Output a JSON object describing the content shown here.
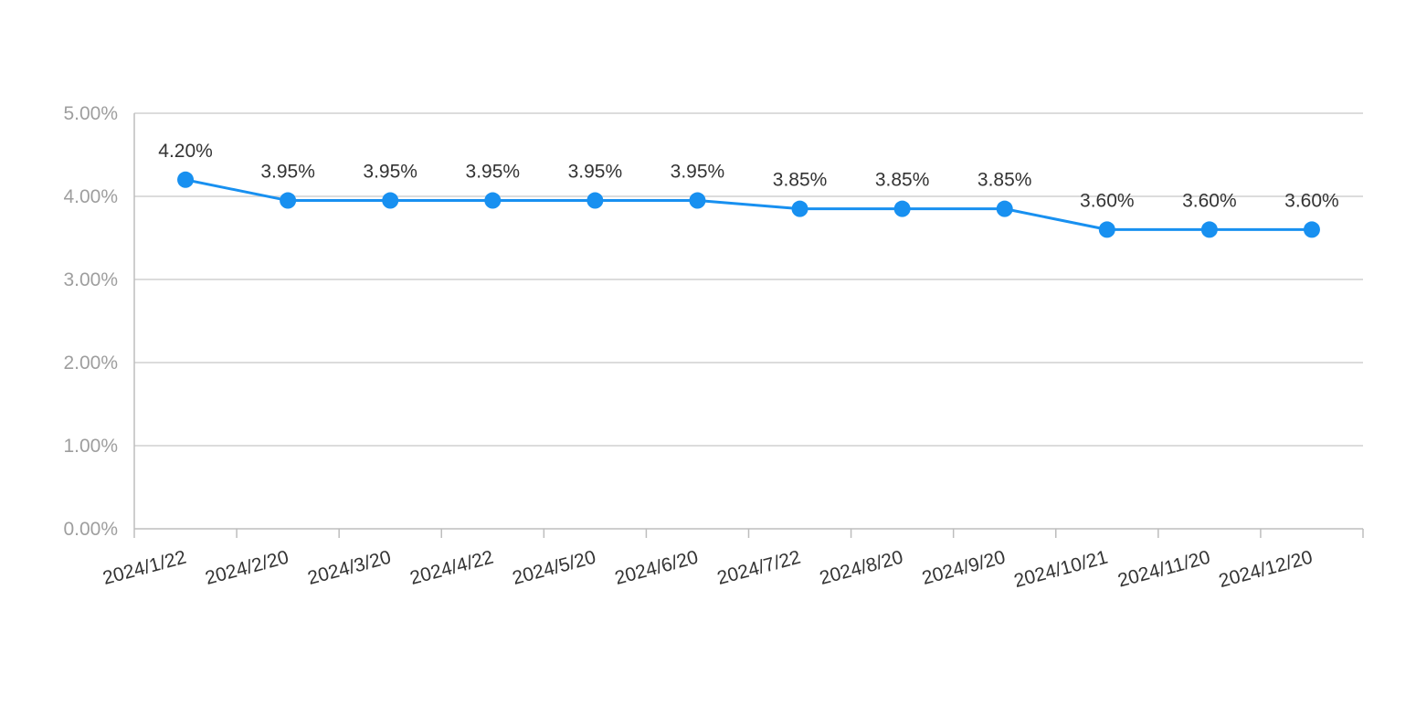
{
  "chart_data": {
    "type": "line",
    "title": "",
    "xlabel": "",
    "ylabel": "",
    "x": [
      "2024/1/22",
      "2024/2/20",
      "2024/3/20",
      "2024/4/22",
      "2024/5/20",
      "2024/6/20",
      "2024/7/22",
      "2024/8/20",
      "2024/9/20",
      "2024/10/21",
      "2024/11/20",
      "2024/12/20"
    ],
    "series": [
      {
        "values": [
          4.2,
          3.95,
          3.95,
          3.95,
          3.95,
          3.95,
          3.85,
          3.85,
          3.85,
          3.6,
          3.6,
          3.6
        ],
        "data_labels": [
          "4.20%",
          "3.95%",
          "3.95%",
          "3.95%",
          "3.95%",
          "3.95%",
          "3.85%",
          "3.85%",
          "3.85%",
          "3.60%",
          "3.60%",
          "3.60%"
        ],
        "color": "#1890f0"
      }
    ],
    "ylim": [
      0,
      5
    ],
    "y_ticks": [
      0,
      1,
      2,
      3,
      4,
      5
    ],
    "y_tick_labels": [
      "0.00%",
      "1.00%",
      "2.00%",
      "3.00%",
      "4.00%",
      "5.00%"
    ],
    "grid": true,
    "legend": "none",
    "colors": {
      "line": "#1890f0",
      "grid": "#d0d0d0",
      "axis": "#bdbdbd",
      "y_tick_text": "#9e9e9e",
      "text": "#333333"
    }
  }
}
